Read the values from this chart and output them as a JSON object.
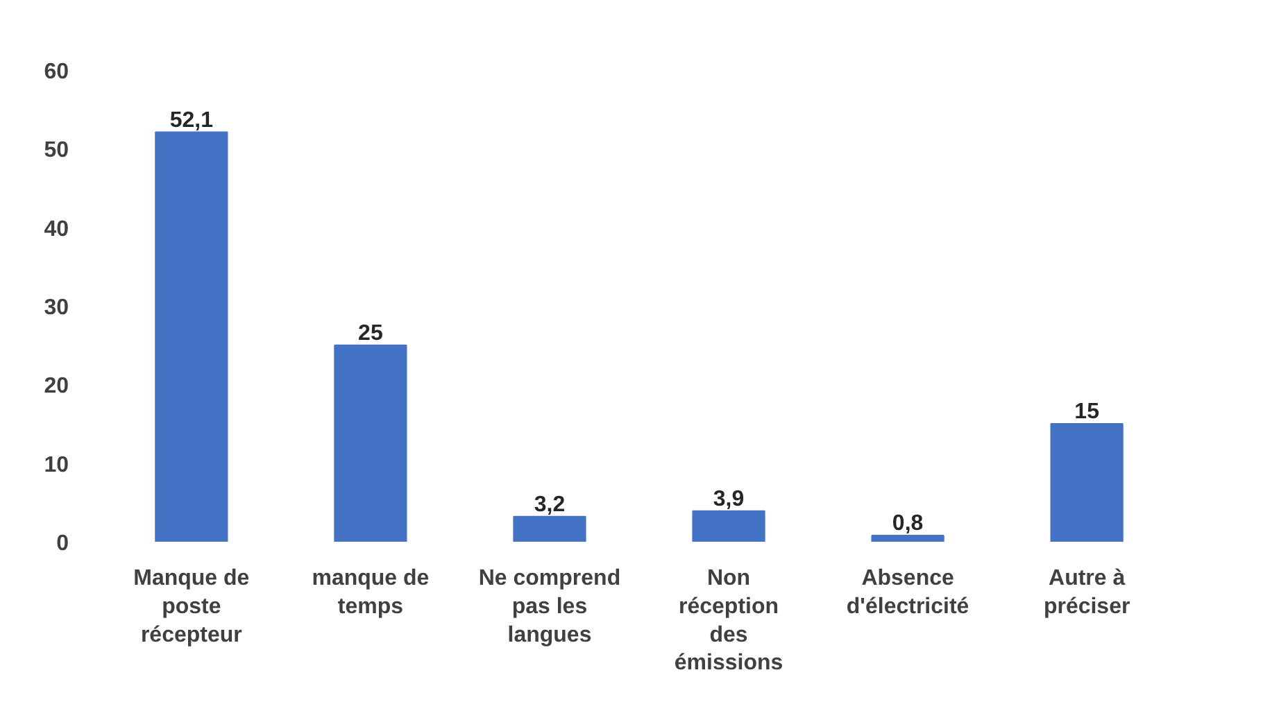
{
  "chart_data": {
    "type": "bar",
    "categories": [
      "Manque de poste récepteur",
      "manque de temps",
      "Ne comprend pas les langues",
      "Non réception des émissions",
      "Absence d'électricité",
      "Autre à préciser"
    ],
    "values": [
      52.1,
      25,
      3.2,
      3.9,
      0.8,
      15
    ],
    "value_labels": [
      "52,1",
      "25",
      "3,2",
      "3,9",
      "0,8",
      "15"
    ],
    "color": "#4472c4",
    "ylim": [
      0,
      60
    ],
    "yticks": [
      0,
      10,
      20,
      30,
      40,
      50,
      60
    ],
    "grid": false
  }
}
